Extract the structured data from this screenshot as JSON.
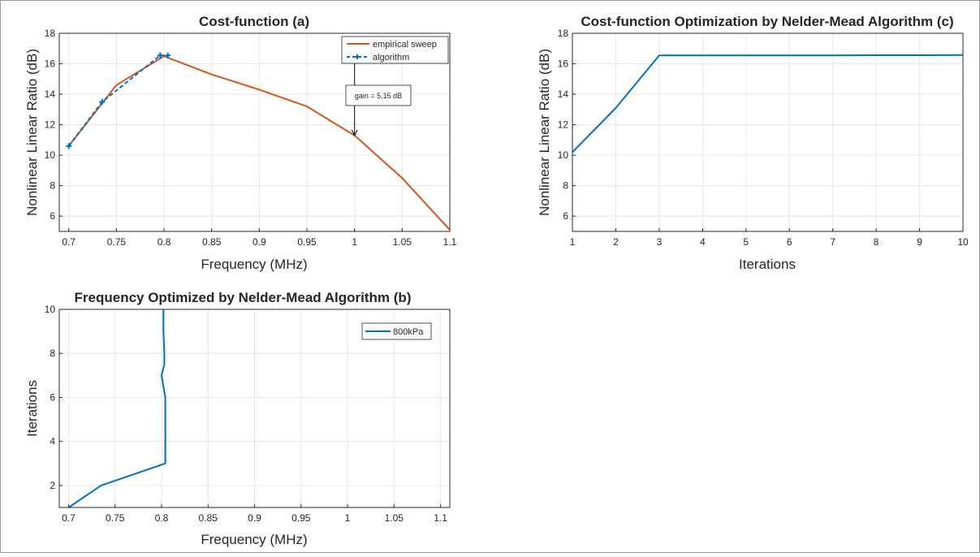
{
  "chart_data": [
    {
      "id": "a",
      "type": "line",
      "title": "Cost-function (a)",
      "xlabel": "Frequency (MHz)",
      "ylabel": "Nonlinear Linear Ratio (dB)",
      "xlim": [
        0.69,
        1.1
      ],
      "ylim": [
        5,
        18
      ],
      "xticks": [
        0.7,
        0.75,
        0.8,
        0.85,
        0.9,
        0.95,
        1,
        1.05,
        1.1
      ],
      "xtick_labels": [
        "0.7",
        "0.75",
        "0.8",
        "0.85",
        "0.9",
        "0.95",
        "1",
        "1.05",
        "1.1"
      ],
      "yticks": [
        6,
        8,
        10,
        12,
        14,
        16,
        18
      ],
      "ytick_labels": [
        "6",
        "8",
        "10",
        "12",
        "14",
        "16",
        "18"
      ],
      "grid": true,
      "legend": "top-right",
      "series": [
        {
          "name": "empirical sweep",
          "color": "#D95319",
          "style": "solid",
          "x": [
            0.7,
            0.75,
            0.8,
            0.85,
            0.9,
            0.95,
            1.0,
            1.05,
            1.1
          ],
          "y": [
            10.6,
            14.6,
            16.5,
            15.3,
            14.3,
            13.2,
            11.3,
            8.5,
            5.1
          ]
        },
        {
          "name": "algorithm",
          "color": "#0072BD",
          "style": "dashed",
          "marker": "+",
          "x": [
            0.7,
            0.735,
            0.796,
            0.804
          ],
          "y": [
            10.6,
            13.5,
            16.55,
            16.55
          ]
        }
      ],
      "annotation": {
        "text": "gain = 5.15 dB",
        "x": 1.0,
        "y_top": 16.5,
        "y_bottom": 11.3
      }
    },
    {
      "id": "b",
      "type": "line",
      "title": "Frequency Optimized by Nelder-Mead Algorithm (b)",
      "xlabel": "Frequency (MHz)",
      "ylabel": "Iterations",
      "xlim": [
        0.69,
        1.11
      ],
      "ylim": [
        1,
        10
      ],
      "xticks": [
        0.7,
        0.75,
        0.8,
        0.85,
        0.9,
        0.95,
        1,
        1.05,
        1.1
      ],
      "xtick_labels": [
        "0.7",
        "0.75",
        "0.8",
        "0.85",
        "0.9",
        "0.95",
        "1",
        "1.05",
        "1.1"
      ],
      "yticks": [
        2,
        4,
        6,
        8,
        10
      ],
      "ytick_labels": [
        "2",
        "4",
        "6",
        "8",
        "10"
      ],
      "grid": true,
      "legend": "top-right",
      "series": [
        {
          "name": "800kPa",
          "color": "#0072BD",
          "style": "solid",
          "x": [
            0.7,
            0.735,
            0.804,
            0.804,
            0.804,
            0.8,
            0.803,
            0.803,
            0.802,
            0.802
          ],
          "y": [
            1,
            2,
            3,
            4,
            6,
            7,
            7.5,
            8,
            9,
            10
          ]
        }
      ]
    },
    {
      "id": "c",
      "type": "line",
      "title": "Cost-function Optimization by Nelder-Mead Algorithm (c)",
      "xlabel": "Iterations",
      "ylabel": "Nonlinear Linear Ratio (dB)",
      "xlim": [
        1,
        10
      ],
      "ylim": [
        5,
        18
      ],
      "xticks": [
        1,
        2,
        3,
        4,
        5,
        6,
        7,
        8,
        9,
        10
      ],
      "xtick_labels": [
        "1",
        "2",
        "3",
        "4",
        "5",
        "6",
        "7",
        "8",
        "9",
        "10"
      ],
      "yticks": [
        6,
        8,
        10,
        12,
        14,
        16,
        18
      ],
      "ytick_labels": [
        "6",
        "8",
        "10",
        "12",
        "14",
        "16",
        "18"
      ],
      "grid": true,
      "series": [
        {
          "color": "#0072BD",
          "style": "solid",
          "x": [
            1,
            2,
            3,
            4,
            5,
            6,
            7,
            8,
            9,
            10
          ],
          "y": [
            10.2,
            13.1,
            16.55,
            16.55,
            16.55,
            16.55,
            16.55,
            16.56,
            16.56,
            16.57
          ]
        }
      ]
    }
  ]
}
